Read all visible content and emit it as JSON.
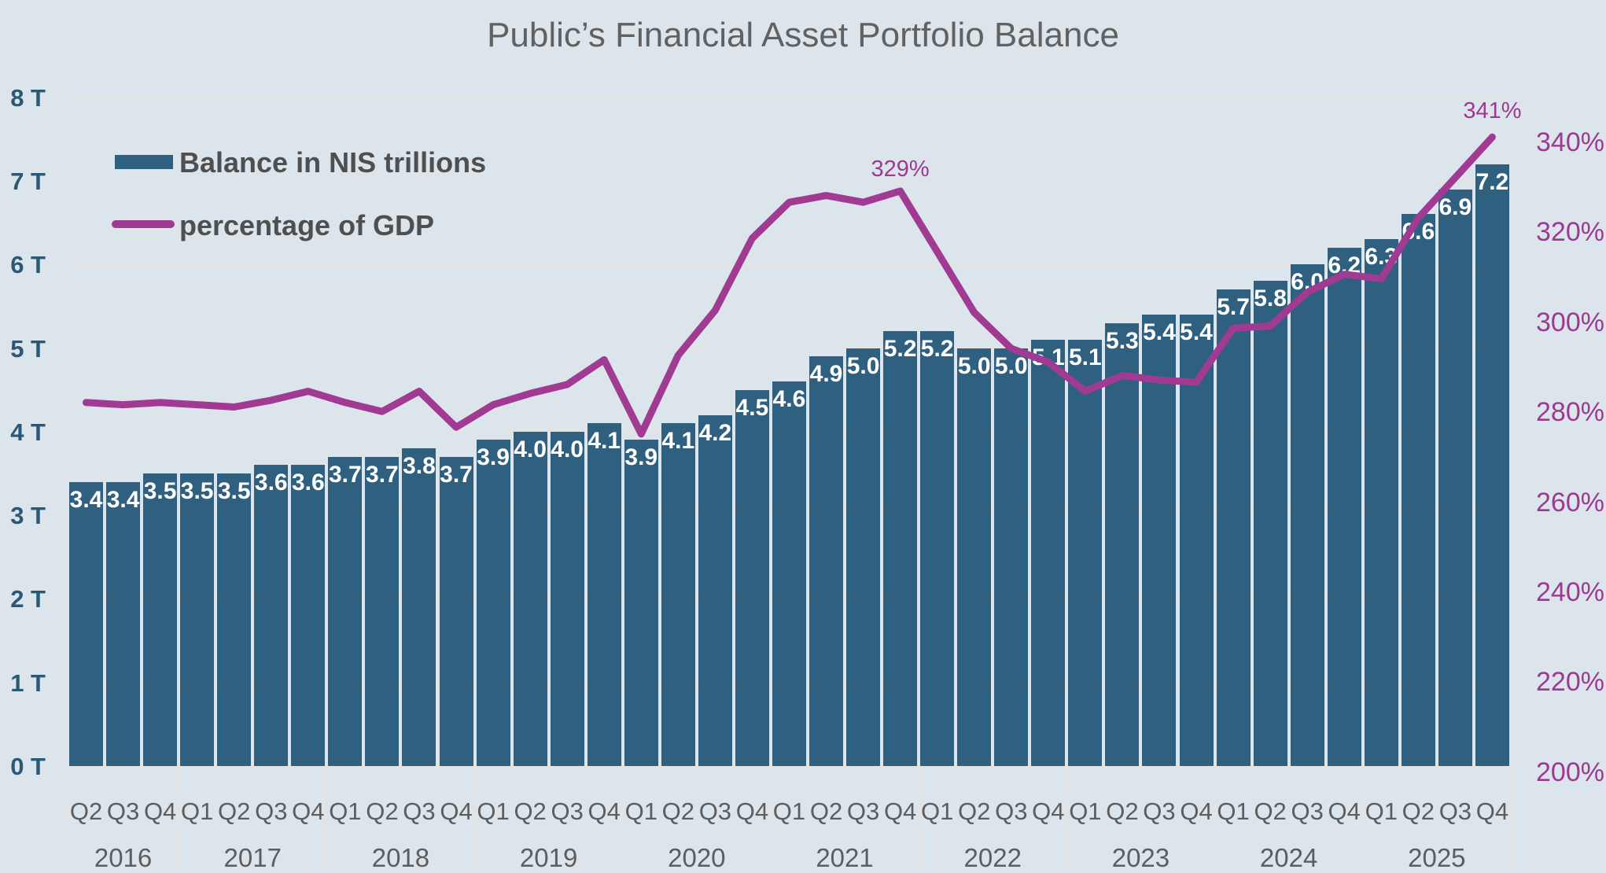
{
  "title": "Public’s Financial Asset Portfolio Balance",
  "legend": {
    "bar_series_label": "Balance in NIS trillions",
    "line_series_label": "percentage of GDP",
    "position": "top-left inside plot"
  },
  "colors": {
    "background": "#dbe5eb",
    "bar": "#2f6080",
    "line": "#a03a92",
    "left_axis_text": "#2b5875",
    "right_axis_text": "#9c3a92",
    "annotation_text": "#9c3a92",
    "gridline": "#e7e3dc",
    "divider": "#e7e3dc",
    "title_text": "#616161",
    "legend_text": "#4f4f4f",
    "x_axis_text": "#5d5d5d",
    "bar_value_text": "#ffffff"
  },
  "chart_data": {
    "type": "bar+line combo",
    "title": "Public’s Financial Asset Portfolio Balance",
    "grid": true,
    "legend_position": "top-left",
    "year_groups": [
      {
        "year": "2016",
        "quarters": [
          "Q2",
          "Q3",
          "Q4"
        ]
      },
      {
        "year": "2017",
        "quarters": [
          "Q1",
          "Q2",
          "Q3",
          "Q4"
        ]
      },
      {
        "year": "2018",
        "quarters": [
          "Q1",
          "Q2",
          "Q3",
          "Q4"
        ]
      },
      {
        "year": "2019",
        "quarters": [
          "Q1",
          "Q2",
          "Q3",
          "Q4"
        ]
      },
      {
        "year": "2020",
        "quarters": [
          "Q1",
          "Q2",
          "Q3",
          "Q4"
        ]
      },
      {
        "year": "2021",
        "quarters": [
          "Q1",
          "Q2",
          "Q3",
          "Q4"
        ]
      },
      {
        "year": "2022",
        "quarters": [
          "Q1",
          "Q2",
          "Q3",
          "Q4"
        ]
      },
      {
        "year": "2023",
        "quarters": [
          "Q1",
          "Q2",
          "Q3",
          "Q4"
        ]
      },
      {
        "year": "2024",
        "quarters": [
          "Q1",
          "Q2",
          "Q3",
          "Q4"
        ]
      },
      {
        "year": "2025",
        "quarters": [
          "Q1",
          "Q2",
          "Q3",
          "Q4"
        ]
      }
    ],
    "series": [
      {
        "name": "Balance in NIS trillions",
        "type": "bar",
        "axis": "left",
        "unit": "NIS trillions",
        "values": [
          3.4,
          3.4,
          3.5,
          3.5,
          3.5,
          3.6,
          3.6,
          3.7,
          3.7,
          3.8,
          3.7,
          3.9,
          4.0,
          4.0,
          4.1,
          3.9,
          4.1,
          4.2,
          4.5,
          4.6,
          4.9,
          5.0,
          5.2,
          5.2,
          5.0,
          5.0,
          5.1,
          5.1,
          5.3,
          5.4,
          5.4,
          5.7,
          5.8,
          6.0,
          6.2,
          6.3,
          6.6,
          6.9,
          7.2
        ]
      },
      {
        "name": "percentage of GDP",
        "type": "line",
        "axis": "right",
        "unit": "%",
        "values": [
          282,
          281.5,
          282,
          281.5,
          281,
          282.5,
          284.5,
          282,
          280,
          284.5,
          276.5,
          281.5,
          284,
          286,
          291.5,
          275,
          292.5,
          302.5,
          318.5,
          326.5,
          328,
          326.5,
          329,
          315.5,
          302,
          294,
          291,
          284.5,
          288,
          287,
          286.5,
          298.5,
          299,
          306.5,
          310.5,
          309.5,
          323,
          332,
          341
        ]
      }
    ],
    "annotations": [
      {
        "series": "percentage of GDP",
        "index": 22,
        "text": "329%",
        "dy": -27
      },
      {
        "series": "percentage of GDP",
        "index": 38,
        "text": "341%",
        "dy": -32
      }
    ],
    "left_axis": {
      "min": 0,
      "max": 8,
      "tick_step": 1,
      "tick_labels": [
        "0 T",
        "1 T",
        "2 T",
        "3 T",
        "4 T",
        "5 T",
        "6 T",
        "7 T",
        "8 T"
      ]
    },
    "right_axis": {
      "tick_values": [
        340,
        320,
        300,
        280,
        260,
        240,
        220,
        200
      ],
      "tick_labels": [
        "340%",
        "320%",
        "300%",
        "280%",
        "260%",
        "240%",
        "220%",
        "200%"
      ]
    }
  }
}
